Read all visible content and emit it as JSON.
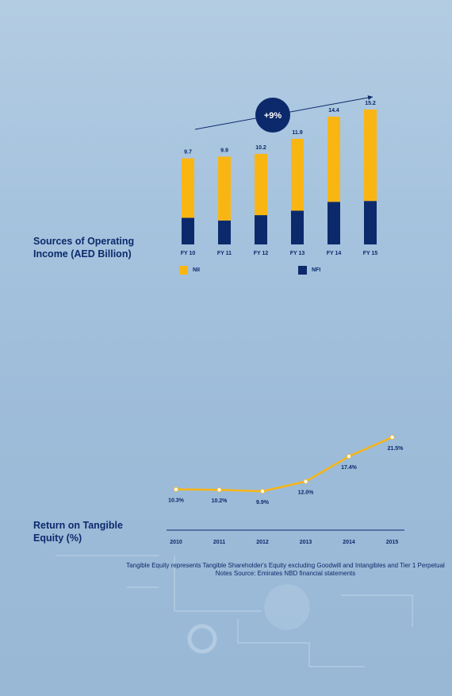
{
  "colors": {
    "nii": "#f9b613",
    "nfi": "#0c2a6b",
    "line": "#f9b613",
    "text": "#0c2a6b",
    "badge": "#0c2a6b",
    "badge_text": "#ffffff"
  },
  "chart_data": [
    {
      "type": "bar",
      "stacked": true,
      "title": "Sources of Operating Income (AED Billion)",
      "categories": [
        "FY 10",
        "FY 11",
        "FY 12",
        "FY 13",
        "FY 14",
        "FY 15"
      ],
      "totals": [
        "9.7",
        "9.9",
        "10.2",
        "11.9",
        "14.4",
        "15.2"
      ],
      "series": [
        {
          "name": "NII",
          "values": [
            6.7,
            7.2,
            6.9,
            8.1,
            9.6,
            10.3
          ]
        },
        {
          "name": "NFI",
          "values": [
            3.0,
            2.7,
            3.3,
            3.8,
            4.8,
            4.9
          ]
        }
      ],
      "ylim": [
        0,
        15.2
      ],
      "growth_badge": "+9%",
      "legend": [
        "NII",
        "NFI"
      ],
      "legend_position": "bottom"
    },
    {
      "type": "line",
      "title": "Return on Tangible Equity (%)",
      "x": [
        "2010",
        "2011",
        "2012",
        "2013",
        "2014",
        "2015"
      ],
      "values": [
        10.3,
        10.2,
        9.9,
        12.0,
        17.4,
        21.5
      ],
      "labels": [
        "10.3%",
        "10.2%",
        "9.9%",
        "12.0%",
        "17.4%",
        "21.5%"
      ],
      "ylim": [
        9.9,
        21.5
      ]
    }
  ],
  "footnote": "Tangible Equity represents Tangible Shareholder's Equity excluding Goodwill and Intangibles and Tier 1 Perpetual Notes Source: Emirates NBD financial statements"
}
